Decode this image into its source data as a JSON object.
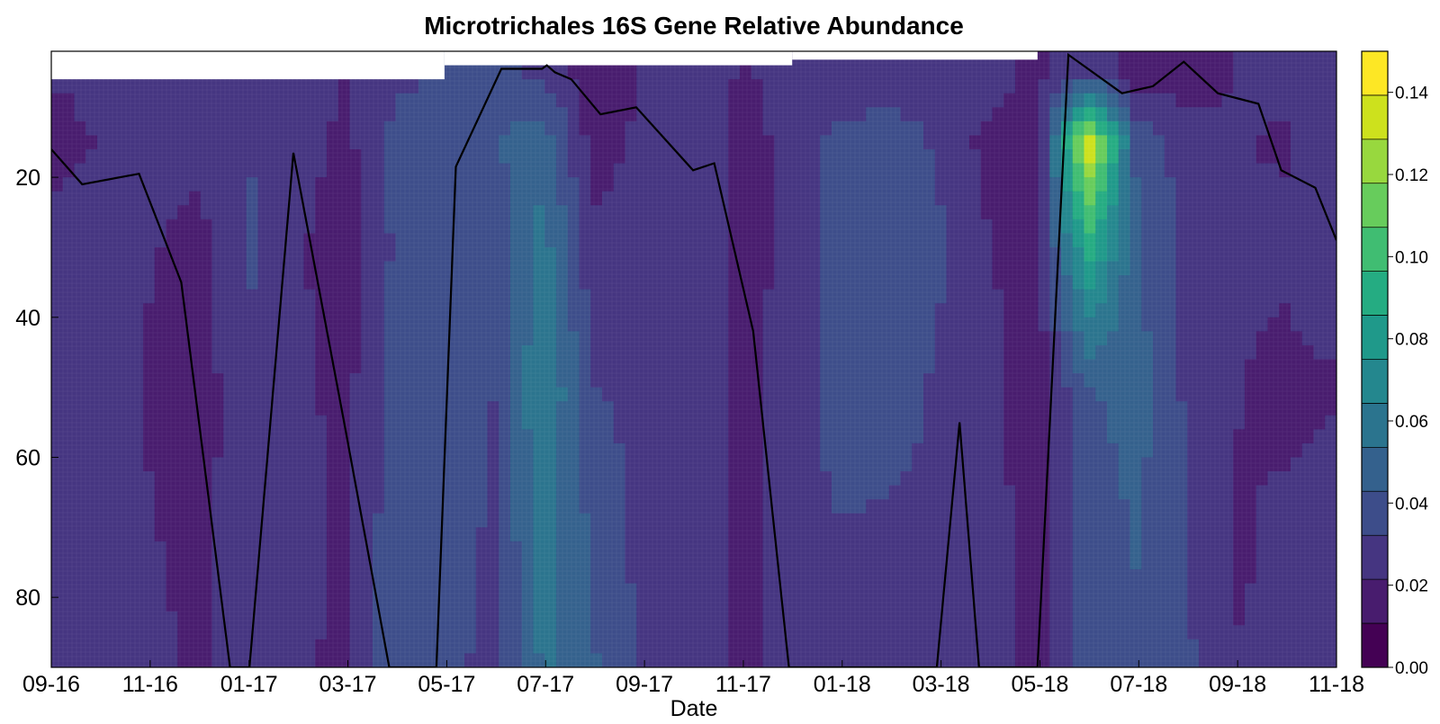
{
  "colors": {
    "scale": [
      "#440154",
      "#481c6e",
      "#453581",
      "#3d4d8a",
      "#34618d",
      "#2b748e",
      "#24878e",
      "#1f998a",
      "#25ac82",
      "#40bd72",
      "#67cc5c",
      "#98d83e",
      "#cde11d",
      "#fde725"
    ],
    "profile_line": "#000000",
    "frame": "#000000"
  },
  "chart_data": {
    "type": "heatmap",
    "title": "Microtrichales 16S Gene Relative Abundance",
    "xlabel": "Date",
    "ylabel": "",
    "x_ticks": [
      "09-16",
      "11-16",
      "01-17",
      "03-17",
      "05-17",
      "07-17",
      "09-17",
      "11-17",
      "01-18",
      "03-18",
      "05-18",
      "07-18",
      "09-18",
      "11-18"
    ],
    "y_ticks": [
      20,
      40,
      60,
      80
    ],
    "ylim": [
      90,
      2
    ],
    "xlim": [
      "2016-09-01",
      "2018-11-01"
    ],
    "colorbar": {
      "ticks": [
        "0.00",
        "0.02",
        "0.04",
        "0.06",
        "0.08",
        "0.10",
        "0.12",
        "0.14"
      ],
      "range": [
        0,
        0.15
      ],
      "levels": 14
    },
    "field_note": "relative abundance by depth (rows) and date (columns), values estimated from contours",
    "depths": [
      5,
      15,
      30,
      50,
      70,
      90
    ],
    "dates": [
      "2016-09-01",
      "2016-10-01",
      "2016-11-01",
      "2016-12-01",
      "2017-01-01",
      "2017-02-01",
      "2017-03-01",
      "2017-04-01",
      "2017-05-01",
      "2017-06-01",
      "2017-07-01",
      "2017-08-01",
      "2017-09-01",
      "2017-10-01",
      "2017-11-01",
      "2017-12-01",
      "2018-01-01",
      "2018-02-01",
      "2018-03-01",
      "2018-04-01",
      "2018-05-01",
      "2018-06-01",
      "2018-07-01",
      "2018-08-01",
      "2018-09-01",
      "2018-10-01",
      "2018-11-01"
    ],
    "values": [
      [
        0.022,
        0.024,
        0.028,
        0.025,
        0.03,
        0.028,
        0.022,
        0.03,
        0.032,
        0.035,
        0.03,
        0.014,
        0.022,
        0.028,
        0.02,
        0.026,
        0.022,
        0.024,
        0.026,
        0.028,
        0.018,
        0.03,
        0.014,
        0.016,
        0.022,
        0.026,
        0.03
      ],
      [
        0.018,
        0.022,
        0.026,
        0.024,
        0.032,
        0.026,
        0.018,
        0.036,
        0.04,
        0.042,
        0.05,
        0.016,
        0.024,
        0.03,
        0.016,
        0.026,
        0.036,
        0.04,
        0.03,
        0.018,
        0.016,
        0.14,
        0.04,
        0.026,
        0.022,
        0.02,
        0.03
      ],
      [
        0.024,
        0.026,
        0.022,
        0.018,
        0.034,
        0.022,
        0.016,
        0.034,
        0.042,
        0.036,
        0.058,
        0.024,
        0.03,
        0.032,
        0.018,
        0.024,
        0.038,
        0.04,
        0.034,
        0.022,
        0.016,
        0.09,
        0.044,
        0.03,
        0.024,
        0.024,
        0.03
      ],
      [
        0.028,
        0.026,
        0.02,
        0.016,
        0.03,
        0.024,
        0.018,
        0.036,
        0.04,
        0.032,
        0.066,
        0.032,
        0.03,
        0.03,
        0.018,
        0.026,
        0.038,
        0.038,
        0.03,
        0.024,
        0.016,
        0.042,
        0.048,
        0.03,
        0.022,
        0.018,
        0.02
      ],
      [
        0.03,
        0.028,
        0.022,
        0.018,
        0.028,
        0.026,
        0.018,
        0.04,
        0.038,
        0.03,
        0.06,
        0.04,
        0.028,
        0.028,
        0.018,
        0.028,
        0.032,
        0.03,
        0.03,
        0.026,
        0.016,
        0.036,
        0.044,
        0.032,
        0.02,
        0.024,
        0.028
      ],
      [
        0.03,
        0.03,
        0.024,
        0.02,
        0.024,
        0.024,
        0.018,
        0.04,
        0.036,
        0.028,
        0.056,
        0.044,
        0.03,
        0.028,
        0.018,
        0.03,
        0.03,
        0.03,
        0.032,
        0.026,
        0.016,
        0.038,
        0.04,
        0.034,
        0.022,
        0.022,
        0.026
      ]
    ],
    "profile_line": {
      "x": [
        "2016-09-01",
        "2016-09-20",
        "2016-10-25",
        "2016-11-20",
        "2016-12-20",
        "2017-01-01",
        "2017-01-28",
        "2017-03-01",
        "2017-03-28",
        "2017-04-26",
        "2017-05-08",
        "2017-06-05",
        "2017-06-30",
        "2017-07-03",
        "2017-07-08",
        "2017-07-18",
        "2017-08-05",
        "2017-08-27",
        "2017-10-01",
        "2017-10-14",
        "2017-11-07",
        "2017-11-29",
        "2018-02-28",
        "2018-03-14",
        "2018-03-26",
        "2018-05-01",
        "2018-05-20",
        "2018-06-22",
        "2018-07-11",
        "2018-07-30",
        "2018-08-20",
        "2018-09-14",
        "2018-09-28",
        "2018-10-19",
        "2018-11-01"
      ],
      "y": [
        16,
        21,
        19.5,
        35,
        90,
        90,
        16.5,
        56,
        90,
        90,
        18.5,
        4.5,
        4.5,
        4,
        5,
        6,
        11,
        10,
        19,
        18,
        42,
        90,
        90,
        55,
        90,
        90,
        2.5,
        8,
        7,
        3.5,
        8,
        9.5,
        19,
        21.5,
        29
      ]
    }
  }
}
